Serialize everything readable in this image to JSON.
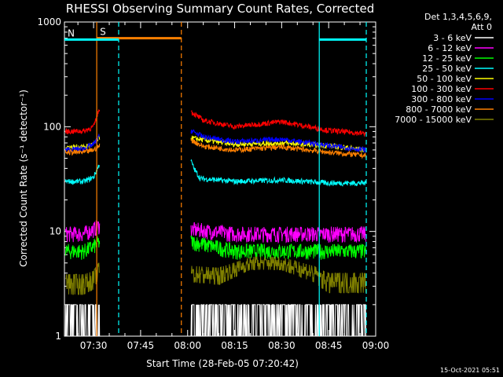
{
  "chart_data": {
    "type": "line",
    "title": "RHESSI Observing Summary Count Rates, Corrected",
    "xlabel": "Start Time (28-Feb-05 07:20:42)",
    "ylabel": "Corrected Count Rate (s⁻¹ detector⁻¹)",
    "yscale": "log",
    "ylim": [
      1,
      1000
    ],
    "xlim": [
      "07:20:42",
      "09:00:00"
    ],
    "x_ticks": [
      "07:30",
      "07:45",
      "08:00",
      "08:15",
      "08:30",
      "08:45",
      "09:00"
    ],
    "y_ticks": [
      "1",
      "10",
      "100",
      "1000"
    ],
    "legend_header": [
      "Det 1,3,4,5,6,9,",
      "Att 0"
    ],
    "legend_position": "right",
    "series": [
      {
        "name": "3 - 6 keV",
        "color": "#ffffff",
        "x": [
          "07:21",
          "07:27",
          "07:30",
          "07:32",
          "08:01",
          "08:15",
          "08:30",
          "08:45",
          "08:57"
        ],
        "y": [
          1,
          1.5,
          1.5,
          1.5,
          1.5,
          1.5,
          1.5,
          1.5,
          1.5
        ]
      },
      {
        "name": "6 - 12 keV",
        "color": "#ff00ff",
        "x": [
          "07:21",
          "07:27",
          "07:30",
          "07:32",
          "08:01",
          "08:15",
          "08:30",
          "08:45",
          "08:57"
        ],
        "y": [
          9.5,
          9.5,
          10.5,
          11.5,
          10.5,
          9.5,
          9.5,
          9.5,
          9.5
        ]
      },
      {
        "name": "12 - 25 keV",
        "color": "#00ff00",
        "x": [
          "07:21",
          "07:27",
          "07:30",
          "07:32",
          "08:01",
          "08:15",
          "08:30",
          "08:45",
          "08:57"
        ],
        "y": [
          6.5,
          6.5,
          7.2,
          8,
          8,
          6.5,
          6.5,
          6.5,
          6.5
        ]
      },
      {
        "name": "25 - 50 keV",
        "color": "#00ffff",
        "x": [
          "07:21",
          "07:27",
          "07:30",
          "07:32",
          "08:01",
          "08:02",
          "08:04",
          "08:15",
          "08:30",
          "08:45",
          "08:57"
        ],
        "y": [
          30,
          30,
          33,
          45,
          48,
          40,
          32,
          30,
          31,
          29,
          29
        ]
      },
      {
        "name": "50 - 100 keV",
        "color": "#ffff00",
        "x": [
          "07:21",
          "07:27",
          "07:30",
          "07:32",
          "08:01",
          "08:15",
          "08:30",
          "08:45",
          "08:57"
        ],
        "y": [
          64,
          64,
          68,
          80,
          78,
          68,
          70,
          66,
          60
        ]
      },
      {
        "name": "100 - 300 keV",
        "color": "#ff0000",
        "x": [
          "07:21",
          "07:27",
          "07:30",
          "07:32",
          "08:01",
          "08:05",
          "08:15",
          "08:30",
          "08:45",
          "08:57"
        ],
        "y": [
          90,
          91,
          100,
          155,
          140,
          115,
          100,
          112,
          92,
          86
        ]
      },
      {
        "name": "300 - 800 keV",
        "color": "#0000ff",
        "x": [
          "07:21",
          "07:27",
          "07:30",
          "07:32",
          "08:01",
          "08:05",
          "08:15",
          "08:30",
          "08:45",
          "08:57"
        ],
        "y": [
          60,
          62,
          68,
          82,
          92,
          80,
          72,
          76,
          66,
          60
        ]
      },
      {
        "name": "800 - 7000 keV",
        "color": "#ff8000",
        "x": [
          "07:21",
          "07:27",
          "07:30",
          "07:32",
          "08:01",
          "08:05",
          "08:15",
          "08:30",
          "08:45",
          "08:57"
        ],
        "y": [
          57,
          57,
          60,
          66,
          75,
          65,
          60,
          64,
          57,
          53
        ]
      },
      {
        "name": "7000 - 15000 keV",
        "color": "#808000",
        "x": [
          "07:21",
          "07:27",
          "07:30",
          "07:32",
          "08:01",
          "08:10",
          "08:20",
          "08:30",
          "08:40",
          "08:45",
          "08:57"
        ],
        "y": [
          3.2,
          3.2,
          3.5,
          4.5,
          4,
          3.8,
          5,
          5,
          4,
          3.3,
          3.3
        ]
      }
    ],
    "gaps": [
      [
        "07:32",
        "08:01"
      ]
    ],
    "annotations": [
      {
        "label": "S",
        "color": "#ff8000",
        "level": 700,
        "x_start": "07:31",
        "x_end": "07:58"
      },
      {
        "label": "N",
        "color": "#00ffff",
        "level": 680,
        "x_start": "07:20:42",
        "x_end": "07:38"
      },
      {
        "label": "",
        "color": "#00ffff",
        "level": 680,
        "x_start": "08:42",
        "x_end": "08:57"
      }
    ],
    "vlines": [
      {
        "x": "07:31",
        "color": "#ff8000",
        "style": "solid"
      },
      {
        "x": "07:38",
        "color": "#00ffff",
        "style": "dashed"
      },
      {
        "x": "07:58",
        "color": "#ff8000",
        "style": "dashed"
      },
      {
        "x": "08:42",
        "color": "#00ffff",
        "style": "solid"
      },
      {
        "x": "08:57",
        "color": "#00ffff",
        "style": "dashed"
      }
    ],
    "grid": false
  },
  "footer": {
    "timestamp": "15-Oct-2021 05:51"
  }
}
